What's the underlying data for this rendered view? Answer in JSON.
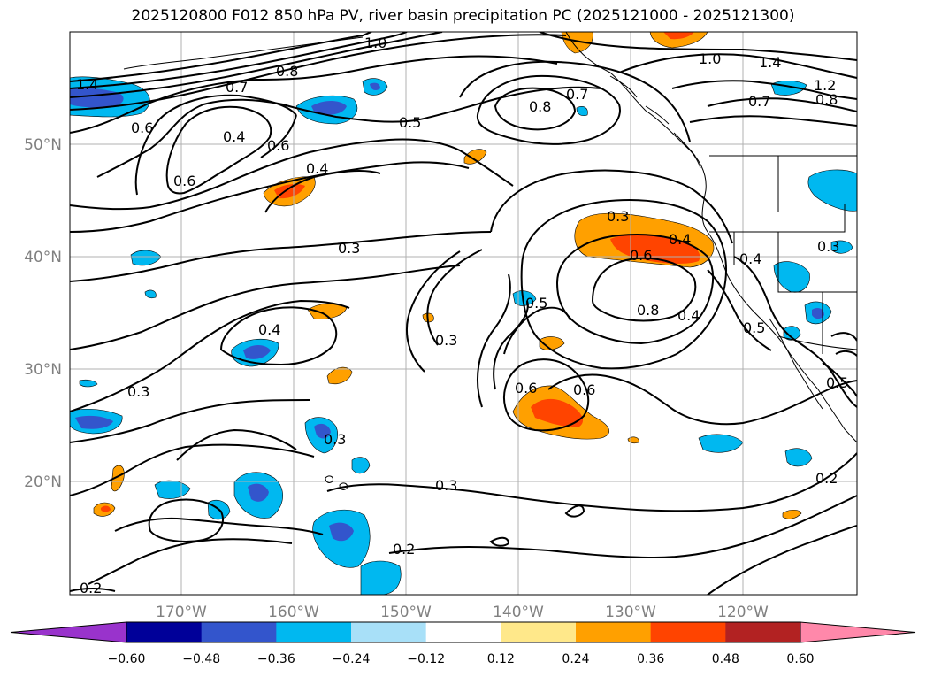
{
  "title": "2025120800 F012 850 hPa PV, river basin precipitation PC (2025121000 - 2025121300)",
  "lat_labels": [
    "50°N",
    "40°N",
    "30°N",
    "20°N"
  ],
  "lon_labels": [
    "170°W",
    "160°W",
    "150°W",
    "140°W",
    "130°W",
    "120°W"
  ],
  "contour_labels": [
    "1.4",
    "1.0",
    "0.8",
    "0.7",
    "0.6",
    "0.6",
    "0.4",
    "0.6",
    "0.5",
    "0.8",
    "0.7",
    "1.0",
    "1.4",
    "1.2",
    "0.7",
    "0.8",
    "0.4",
    "0.3",
    "0.3",
    "0.6",
    "0.4",
    "0.5",
    "0.8",
    "0.4",
    "0.4",
    "0.3",
    "0.4",
    "0.5",
    "0.3",
    "0.3",
    "0.6",
    "0.6",
    "0.5",
    "0.3",
    "0.3",
    "0.2",
    "0.2",
    "0.2"
  ],
  "colorbar": {
    "tick_labels": [
      "−0.60",
      "−0.48",
      "−0.36",
      "−0.24",
      "−0.12",
      "0.12",
      "0.24",
      "0.36",
      "0.48",
      "0.60"
    ],
    "colors": [
      "#9933cc",
      "#000099",
      "#3355cc",
      "#00b8f0",
      "#a8e0f8",
      "#ffffff",
      "#ffe88a",
      "#ffa000",
      "#ff4400",
      "#b22222",
      "#ff88aa"
    ]
  },
  "map_colors": {
    "blue_light": "#00b8f0",
    "blue_mid": "#3355cc",
    "orange": "#ffa000",
    "red_orange": "#ff4400"
  }
}
